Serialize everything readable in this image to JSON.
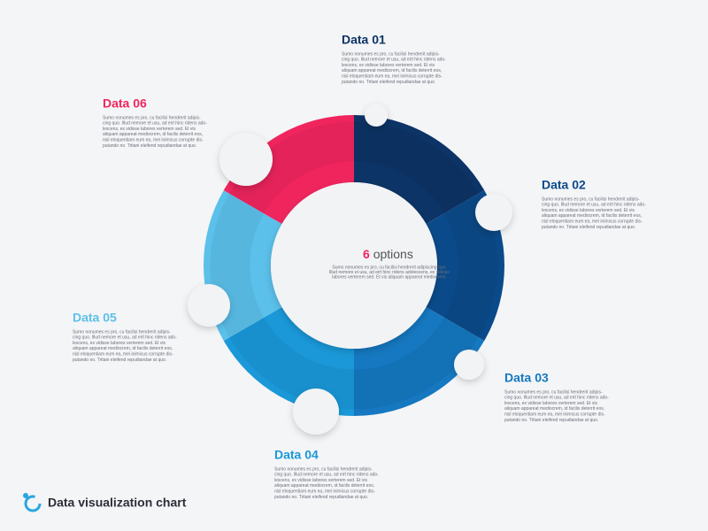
{
  "title": "Data visualization chart",
  "center": {
    "count": "6",
    "label": "options",
    "lines": [
      "Sumo nonumes es pro, cu facilisi hendrerit adipiscing quo.",
      "Illud nemore et usu, ad eirt hinc ridens adolescens, ex vidisse",
      "labores verterem sed. Et vis aliquam appareat mediocrem."
    ]
  },
  "items": [
    {
      "label": "Data 01",
      "color": "#0d3466",
      "lines": [
        "Sumo nonumes es pro, cu facilisi hendrerit adipis-",
        "cing quo. Illud nemore et usu, ad eirt hinc ridens ado-",
        "lescens, ex vidisse labores verterem sed. Et vis",
        "aliquam appareat mediocrem, id facilis deterrit eos,",
        "nisl eloquentiam eum ea, mei inimicus corrupte dis-",
        "putando no. Tritani eleifend repudiandae at quo."
      ]
    },
    {
      "label": "Data 02",
      "color": "#0b4a8a",
      "lines": [
        "Sumo nonumes es pro, cu facilisi hendrerit adipis-",
        "cing quo. Illud nemore et usu, ad eirt hinc ridens ado-",
        "lescens, ex vidisse labores verterem sed. Et vis",
        "aliquam appareat mediocrem, id facilis deterrit eos,",
        "nisl eloquentiam eum ea, mei inimicus corrupte dis-",
        "putando no. Tritani eleifend repudiandae at quo."
      ]
    },
    {
      "label": "Data 03",
      "color": "#1578c0",
      "lines": [
        "Sumo nonumes es pro, cu facilisi hendrerit adipis-",
        "cing quo. Illud nemore et usu, ad eirt hinc ridens ado-",
        "lescens, ex vidisse labores verterem sed. Et vis",
        "aliquam appareat mediocrem, id facilis deterrit eos,",
        "nisl eloquentiam eum ea, mei inimicus corrupte dis-",
        "putando no. Tritani eleifend repudiandae at quo."
      ]
    },
    {
      "label": "Data 04",
      "color": "#1a98d8",
      "lines": [
        "Sumo nonumes es pro, cu facilisi hendrerit adipis-",
        "cing quo. Illud nemore et usu, ad eirt hinc ridens ado-",
        "lescens, ex vidisse labores verterem sed. Et vis",
        "aliquam appareat mediocrem, id facilis deterrit eos,",
        "nisl eloquentiam eum ea, mei inimicus corrupte dis-",
        "putando no. Tritani eleifend repudiandae at quo."
      ]
    },
    {
      "label": "Data 05",
      "color": "#5bc0ea",
      "lines": [
        "Sumo nonumes es pro, cu facilisi hendrerit adipis-",
        "cing quo. Illud nemore et usu, ad eirt hinc ridens ado-",
        "lescens, ex vidisse labores verterem sed. Et vis",
        "aliquam appareat mediocrem, id facilis deterrit eos,",
        "nisl eloquentiam eum ea, mei inimicus corrupte dis-",
        "putando no. Tritani eleifend repudiandae at quo."
      ]
    },
    {
      "label": "Data 06",
      "color": "#f0255e",
      "lines": [
        "Sumo nonumes es pro, cu facilisi hendrerit adipis-",
        "cing quo. Illud nemore et usu, ad eirt hinc ridens ado-",
        "lescens, ex vidisse labores verterem sed. Et vis",
        "aliquam appareat mediocrem, id facilis deterrit eos,",
        "nisl eloquentiam eum ea, mei inimicus corrupte dis-",
        "putando no. Tritani eleifend repudiandae at quo."
      ]
    }
  ]
}
